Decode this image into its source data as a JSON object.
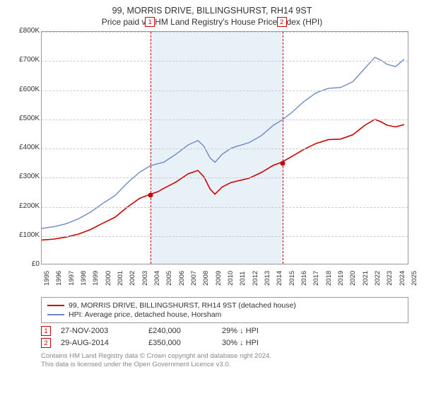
{
  "title": "99, MORRIS DRIVE, BILLINGSHURST, RH14 9ST",
  "subtitle": "Price paid vs. HM Land Registry's House Price Index (HPI)",
  "chart": {
    "type": "line",
    "background_color": "#ffffff",
    "grid_color": "#cccccc",
    "border_color": "#999999",
    "title_fontsize": 12.5,
    "label_fontsize": 10,
    "ylim": [
      0,
      800000
    ],
    "ytick_step": 100000,
    "yticks": [
      "£0",
      "£100K",
      "£200K",
      "£300K",
      "£400K",
      "£500K",
      "£600K",
      "£700K",
      "£800K"
    ],
    "xlim": [
      1995,
      2025
    ],
    "xticks": [
      1995,
      1996,
      1997,
      1998,
      1999,
      2000,
      2001,
      2002,
      2003,
      2004,
      2005,
      2006,
      2007,
      2008,
      2009,
      2010,
      2011,
      2012,
      2013,
      2014,
      2015,
      2016,
      2017,
      2018,
      2019,
      2020,
      2021,
      2022,
      2023,
      2024,
      2025
    ],
    "shaded_region": {
      "from_year": 2003.9,
      "to_year": 2014.66,
      "fill": "rgba(173,200,230,0.28)"
    },
    "series": [
      {
        "name": "price_paid",
        "label": "99, MORRIS DRIVE, BILLINGSHURST, RH14 9ST (detached house)",
        "color": "#cc0000",
        "line_width": 1.6,
        "points": [
          [
            1995,
            82000
          ],
          [
            1996,
            85000
          ],
          [
            1997,
            92000
          ],
          [
            1998,
            102000
          ],
          [
            1999,
            118000
          ],
          [
            2000,
            140000
          ],
          [
            2001,
            160000
          ],
          [
            2002,
            195000
          ],
          [
            2003,
            225000
          ],
          [
            2003.9,
            240000
          ],
          [
            2004.5,
            248000
          ],
          [
            2005,
            260000
          ],
          [
            2006,
            282000
          ],
          [
            2007,
            310000
          ],
          [
            2007.8,
            322000
          ],
          [
            2008.3,
            300000
          ],
          [
            2008.8,
            258000
          ],
          [
            2009.2,
            240000
          ],
          [
            2009.8,
            265000
          ],
          [
            2010.5,
            280000
          ],
          [
            2011,
            285000
          ],
          [
            2012,
            295000
          ],
          [
            2013,
            315000
          ],
          [
            2014,
            340000
          ],
          [
            2014.66,
            350000
          ],
          [
            2015.5,
            370000
          ],
          [
            2016.5,
            395000
          ],
          [
            2017.5,
            415000
          ],
          [
            2018.5,
            428000
          ],
          [
            2019.5,
            430000
          ],
          [
            2020.5,
            445000
          ],
          [
            2021.5,
            478000
          ],
          [
            2022.3,
            498000
          ],
          [
            2022.8,
            490000
          ],
          [
            2023.3,
            478000
          ],
          [
            2024,
            472000
          ],
          [
            2024.7,
            480000
          ]
        ]
      },
      {
        "name": "hpi",
        "label": "HPI: Average price, detached house, Horsham",
        "color": "#6b89c7",
        "line_width": 1.4,
        "points": [
          [
            1995,
            122000
          ],
          [
            1996,
            128000
          ],
          [
            1997,
            138000
          ],
          [
            1998,
            155000
          ],
          [
            1999,
            178000
          ],
          [
            2000,
            208000
          ],
          [
            2001,
            235000
          ],
          [
            2002,
            278000
          ],
          [
            2003,
            315000
          ],
          [
            2003.9,
            338000
          ],
          [
            2004.5,
            345000
          ],
          [
            2005,
            350000
          ],
          [
            2006,
            378000
          ],
          [
            2007,
            410000
          ],
          [
            2007.8,
            425000
          ],
          [
            2008.3,
            405000
          ],
          [
            2008.8,
            365000
          ],
          [
            2009.2,
            350000
          ],
          [
            2009.8,
            378000
          ],
          [
            2010.5,
            398000
          ],
          [
            2011,
            405000
          ],
          [
            2012,
            418000
          ],
          [
            2013,
            442000
          ],
          [
            2014,
            478000
          ],
          [
            2014.66,
            495000
          ],
          [
            2015.5,
            522000
          ],
          [
            2016.5,
            560000
          ],
          [
            2017.5,
            590000
          ],
          [
            2018.5,
            605000
          ],
          [
            2019.5,
            608000
          ],
          [
            2020.5,
            628000
          ],
          [
            2021.5,
            675000
          ],
          [
            2022.3,
            712000
          ],
          [
            2022.8,
            702000
          ],
          [
            2023.3,
            688000
          ],
          [
            2024,
            680000
          ],
          [
            2024.7,
            705000
          ]
        ]
      }
    ],
    "sale_markers": [
      {
        "n": "1",
        "year": 2003.9,
        "price": 240000,
        "line_color": "#cc0000"
      },
      {
        "n": "2",
        "year": 2014.66,
        "price": 350000,
        "line_color": "#cc0000"
      }
    ],
    "marker_badge": {
      "border_color": "#cc0000",
      "text_color": "#cc0000",
      "bg": "#ffffff",
      "size": 14
    }
  },
  "legend": {
    "items": [
      {
        "color": "#cc0000",
        "label": "99, MORRIS DRIVE, BILLINGSHURST, RH14 9ST (detached house)"
      },
      {
        "color": "#6b89c7",
        "label": "HPI: Average price, detached house, Horsham"
      }
    ]
  },
  "sales_table": {
    "rows": [
      {
        "n": "1",
        "date": "27-NOV-2003",
        "price": "£240,000",
        "diff": "29% ↓ HPI"
      },
      {
        "n": "2",
        "date": "29-AUG-2014",
        "price": "£350,000",
        "diff": "30% ↓ HPI"
      }
    ]
  },
  "footer": {
    "line1": "Contains HM Land Registry data © Crown copyright and database right 2024.",
    "line2": "This data is licensed under the Open Government Licence v3.0."
  }
}
